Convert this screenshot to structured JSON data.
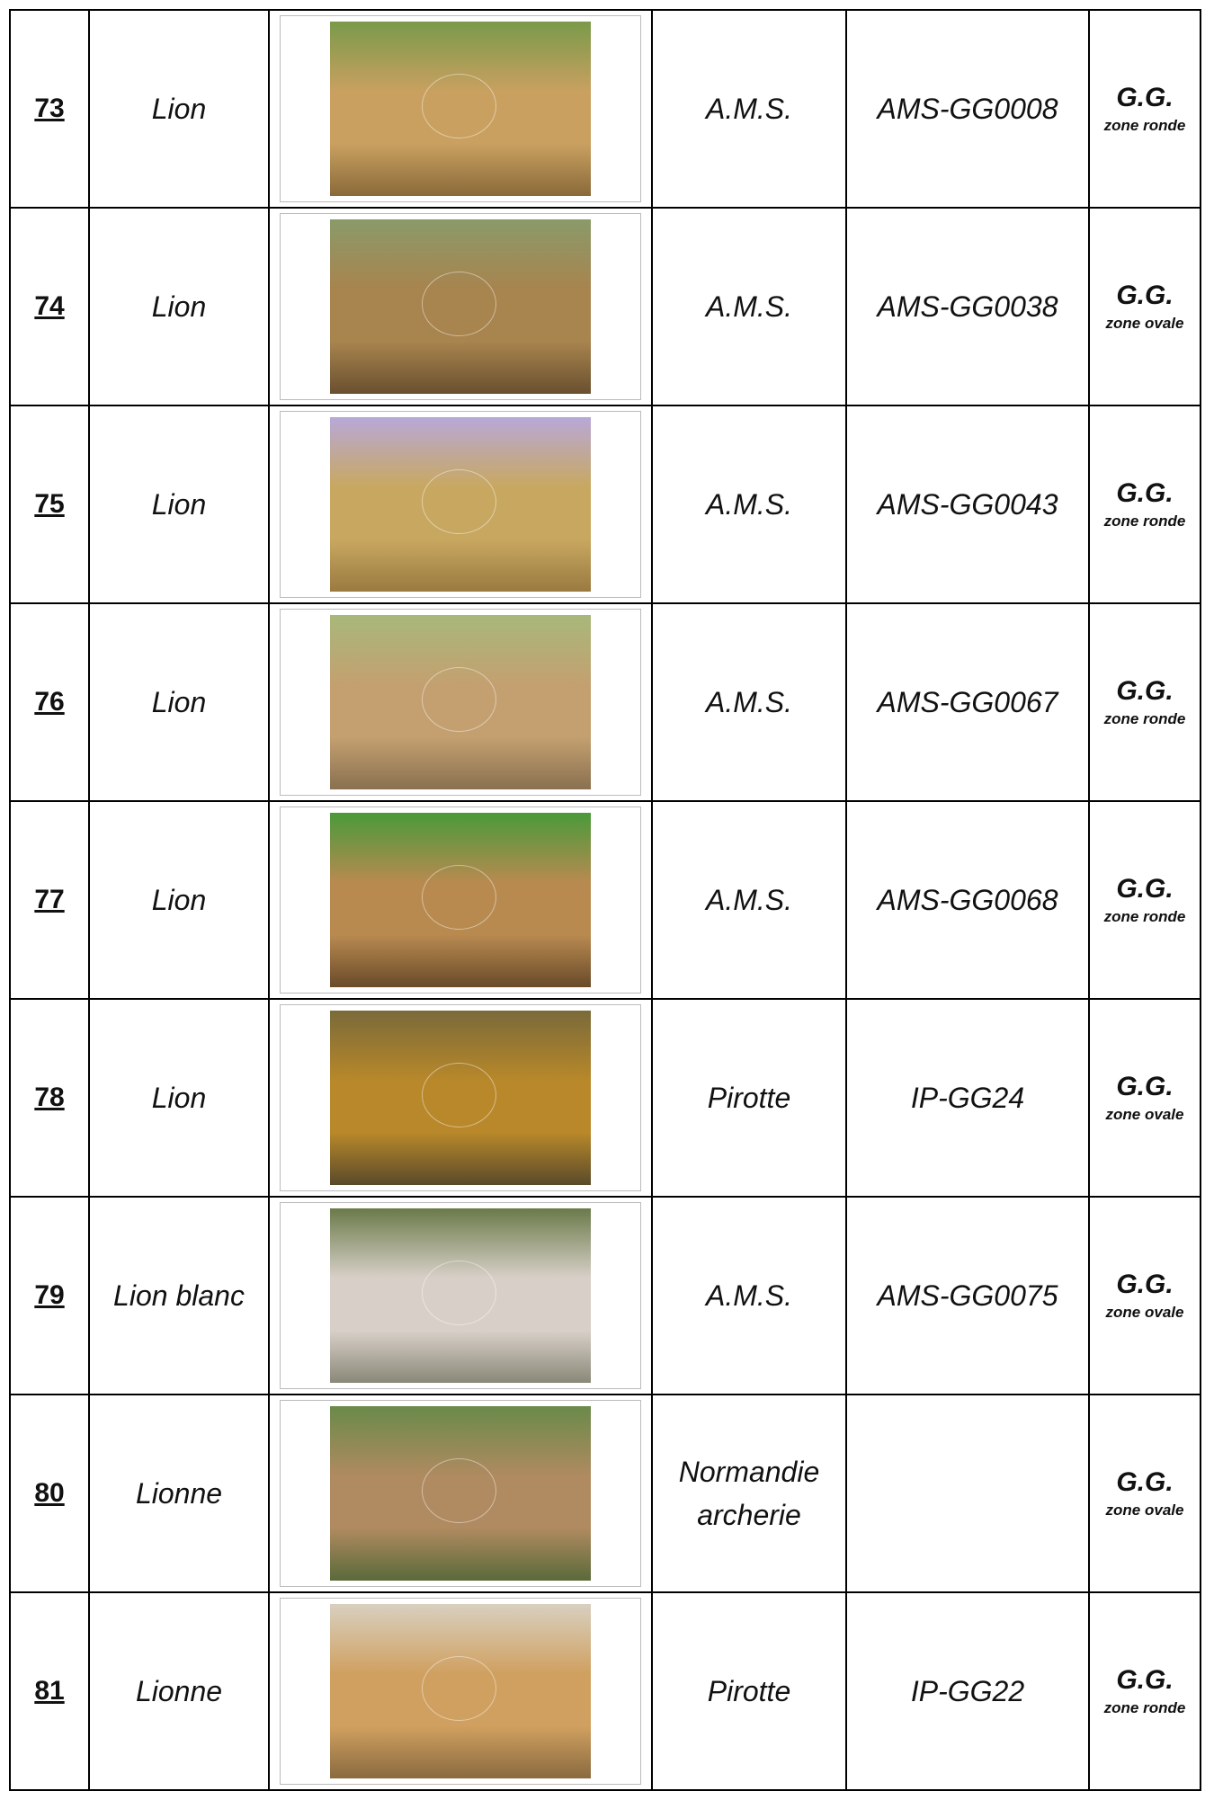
{
  "table": {
    "rows": [
      {
        "number": "73",
        "name": "Lion",
        "maker": "A.M.S.",
        "code": "AMS-GG0008",
        "grade": "G.G.",
        "zone": "zone ronde"
      },
      {
        "number": "74",
        "name": "Lion",
        "maker": "A.M.S.",
        "code": "AMS-GG0038",
        "grade": "G.G.",
        "zone": "zone ovale"
      },
      {
        "number": "75",
        "name": "Lion",
        "maker": "A.M.S.",
        "code": "AMS-GG0043",
        "grade": "G.G.",
        "zone": "zone ronde"
      },
      {
        "number": "76",
        "name": "Lion",
        "maker": "A.M.S.",
        "code": "AMS-GG0067",
        "grade": "G.G.",
        "zone": "zone ronde"
      },
      {
        "number": "77",
        "name": "Lion",
        "maker": "A.M.S.",
        "code": "AMS-GG0068",
        "grade": "G.G.",
        "zone": "zone ronde"
      },
      {
        "number": "78",
        "name": "Lion",
        "maker": "Pirotte",
        "code": "IP-GG24",
        "grade": "G.G.",
        "zone": "zone ovale"
      },
      {
        "number": "79",
        "name": "Lion blanc",
        "maker": "A.M.S.",
        "code": "AMS-GG0075",
        "grade": "G.G.",
        "zone": "zone ovale"
      },
      {
        "number": "80",
        "name": "Lionne",
        "maker": "Normandie archerie",
        "grade": "G.G.",
        "zone": "zone ovale"
      },
      {
        "number": "81",
        "name": "Lionne",
        "maker": "Pirotte",
        "code": "IP-GG22",
        "grade": "G.G.",
        "zone": "zone ronde"
      }
    ]
  }
}
